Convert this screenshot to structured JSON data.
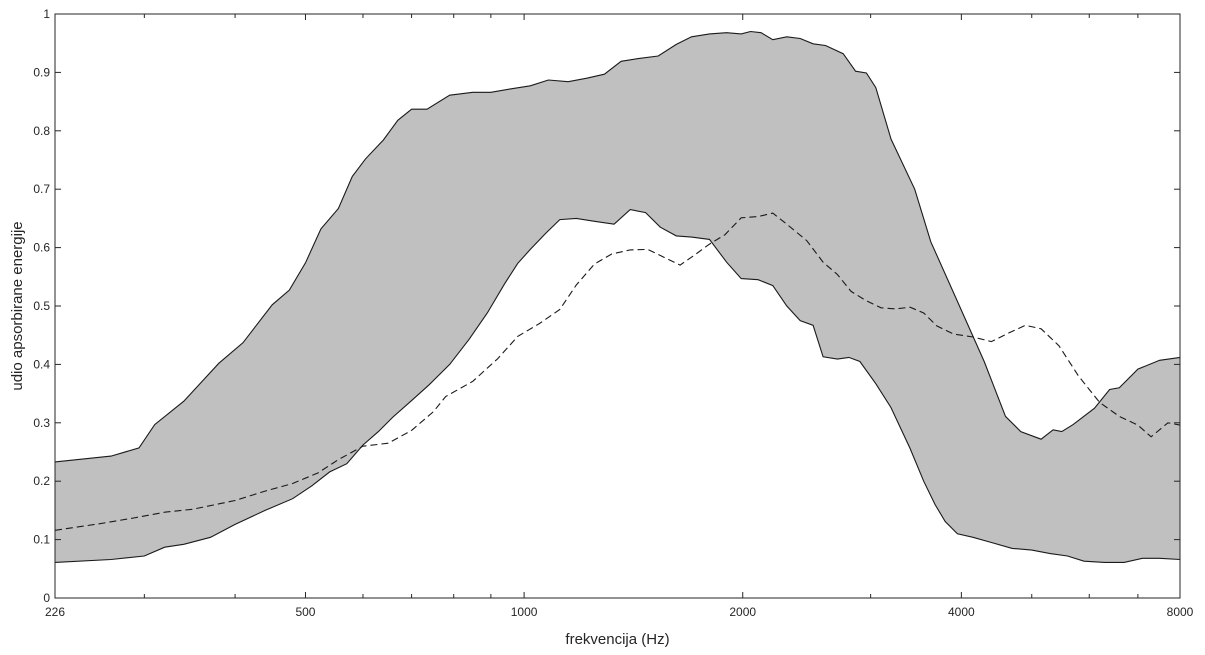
{
  "chart_data": {
    "type": "area",
    "title": "",
    "xlabel": "frekvencija (Hz)",
    "ylabel": "udio apsorbirane energije",
    "x_scale": "log",
    "xlim": [
      226,
      8000
    ],
    "ylim": [
      0,
      1
    ],
    "x_ticks": [
      {
        "value": 226,
        "label": "226"
      },
      {
        "value": 500,
        "label": "500"
      },
      {
        "value": 1000,
        "label": "1000"
      },
      {
        "value": 2000,
        "label": "2000"
      },
      {
        "value": 4000,
        "label": "4000"
      },
      {
        "value": 8000,
        "label": "8000"
      }
    ],
    "x_minor_ticks": [
      300,
      400,
      600,
      700,
      800,
      900,
      3000,
      5000,
      6000,
      7000
    ],
    "y_ticks": [
      {
        "value": 0,
        "label": "0"
      },
      {
        "value": 0.1,
        "label": "0.1"
      },
      {
        "value": 0.2,
        "label": "0.2"
      },
      {
        "value": 0.3,
        "label": "0.3"
      },
      {
        "value": 0.4,
        "label": "0.4"
      },
      {
        "value": 0.5,
        "label": "0.5"
      },
      {
        "value": 0.6,
        "label": "0.6"
      },
      {
        "value": 0.7,
        "label": "0.7"
      },
      {
        "value": 0.8,
        "label": "0.8"
      },
      {
        "value": 0.9,
        "label": "0.9"
      },
      {
        "value": 1,
        "label": "1"
      }
    ],
    "grid": false,
    "legend": "none",
    "colors": {
      "band_fill": "#c0c0c0",
      "band_edge": "#1a1a1a",
      "dashed_line": "#1a1a1a",
      "axis": "#262626"
    },
    "series": [
      {
        "role": "band-upper",
        "style": "solid",
        "points": [
          [
            226,
            0.233
          ],
          [
            270,
            0.243
          ],
          [
            295,
            0.257
          ],
          [
            310,
            0.297
          ],
          [
            340,
            0.337
          ],
          [
            380,
            0.402
          ],
          [
            410,
            0.437
          ],
          [
            450,
            0.502
          ],
          [
            475,
            0.527
          ],
          [
            500,
            0.574
          ],
          [
            525,
            0.632
          ],
          [
            555,
            0.667
          ],
          [
            580,
            0.722
          ],
          [
            605,
            0.752
          ],
          [
            640,
            0.784
          ],
          [
            670,
            0.818
          ],
          [
            700,
            0.837
          ],
          [
            735,
            0.837
          ],
          [
            790,
            0.861
          ],
          [
            850,
            0.866
          ],
          [
            900,
            0.866
          ],
          [
            960,
            0.872
          ],
          [
            1020,
            0.877
          ],
          [
            1080,
            0.887
          ],
          [
            1150,
            0.884
          ],
          [
            1220,
            0.89
          ],
          [
            1290,
            0.897
          ],
          [
            1360,
            0.919
          ],
          [
            1440,
            0.924
          ],
          [
            1530,
            0.928
          ],
          [
            1620,
            0.948
          ],
          [
            1700,
            0.961
          ],
          [
            1800,
            0.966
          ],
          [
            1900,
            0.968
          ],
          [
            1990,
            0.966
          ],
          [
            2050,
            0.97
          ],
          [
            2120,
            0.968
          ],
          [
            2200,
            0.956
          ],
          [
            2300,
            0.961
          ],
          [
            2400,
            0.958
          ],
          [
            2500,
            0.949
          ],
          [
            2600,
            0.946
          ],
          [
            2750,
            0.932
          ],
          [
            2860,
            0.902
          ],
          [
            2960,
            0.899
          ],
          [
            3050,
            0.874
          ],
          [
            3200,
            0.786
          ],
          [
            3450,
            0.7
          ],
          [
            3630,
            0.61
          ],
          [
            3960,
            0.505
          ],
          [
            4300,
            0.405
          ],
          [
            4600,
            0.311
          ],
          [
            4830,
            0.285
          ],
          [
            5150,
            0.272
          ],
          [
            5350,
            0.288
          ],
          [
            5500,
            0.285
          ],
          [
            5700,
            0.297
          ],
          [
            6100,
            0.325
          ],
          [
            6400,
            0.357
          ],
          [
            6600,
            0.36
          ],
          [
            7000,
            0.392
          ],
          [
            7500,
            0.407
          ],
          [
            8000,
            0.412
          ]
        ]
      },
      {
        "role": "band-lower",
        "style": "solid",
        "points": [
          [
            226,
            0.061
          ],
          [
            270,
            0.066
          ],
          [
            300,
            0.072
          ],
          [
            320,
            0.087
          ],
          [
            340,
            0.092
          ],
          [
            370,
            0.104
          ],
          [
            400,
            0.126
          ],
          [
            440,
            0.15
          ],
          [
            480,
            0.17
          ],
          [
            510,
            0.192
          ],
          [
            540,
            0.216
          ],
          [
            570,
            0.23
          ],
          [
            600,
            0.262
          ],
          [
            630,
            0.285
          ],
          [
            660,
            0.31
          ],
          [
            700,
            0.338
          ],
          [
            740,
            0.365
          ],
          [
            790,
            0.4
          ],
          [
            840,
            0.443
          ],
          [
            890,
            0.488
          ],
          [
            940,
            0.538
          ],
          [
            980,
            0.573
          ],
          [
            1020,
            0.597
          ],
          [
            1070,
            0.624
          ],
          [
            1120,
            0.648
          ],
          [
            1180,
            0.65
          ],
          [
            1250,
            0.645
          ],
          [
            1330,
            0.64
          ],
          [
            1400,
            0.665
          ],
          [
            1470,
            0.66
          ],
          [
            1540,
            0.635
          ],
          [
            1620,
            0.62
          ],
          [
            1700,
            0.618
          ],
          [
            1800,
            0.614
          ],
          [
            1900,
            0.575
          ],
          [
            1990,
            0.547
          ],
          [
            2100,
            0.545
          ],
          [
            2200,
            0.535
          ],
          [
            2300,
            0.5
          ],
          [
            2400,
            0.475
          ],
          [
            2500,
            0.467
          ],
          [
            2580,
            0.413
          ],
          [
            2700,
            0.409
          ],
          [
            2800,
            0.412
          ],
          [
            2900,
            0.405
          ],
          [
            3050,
            0.367
          ],
          [
            3200,
            0.326
          ],
          [
            3400,
            0.256
          ],
          [
            3550,
            0.2
          ],
          [
            3680,
            0.16
          ],
          [
            3800,
            0.131
          ],
          [
            3950,
            0.11
          ],
          [
            4150,
            0.104
          ],
          [
            4400,
            0.095
          ],
          [
            4700,
            0.085
          ],
          [
            5000,
            0.082
          ],
          [
            5300,
            0.076
          ],
          [
            5600,
            0.072
          ],
          [
            5900,
            0.063
          ],
          [
            6300,
            0.061
          ],
          [
            6700,
            0.061
          ],
          [
            7100,
            0.068
          ],
          [
            7500,
            0.068
          ],
          [
            8000,
            0.066
          ]
        ]
      },
      {
        "role": "mean",
        "style": "dashed",
        "points": [
          [
            226,
            0.116
          ],
          [
            260,
            0.127
          ],
          [
            290,
            0.137
          ],
          [
            320,
            0.147
          ],
          [
            350,
            0.152
          ],
          [
            400,
            0.167
          ],
          [
            440,
            0.183
          ],
          [
            480,
            0.196
          ],
          [
            520,
            0.214
          ],
          [
            555,
            0.237
          ],
          [
            600,
            0.26
          ],
          [
            650,
            0.265
          ],
          [
            700,
            0.287
          ],
          [
            750,
            0.319
          ],
          [
            780,
            0.345
          ],
          [
            850,
            0.371
          ],
          [
            920,
            0.41
          ],
          [
            980,
            0.448
          ],
          [
            1050,
            0.47
          ],
          [
            1120,
            0.494
          ],
          [
            1180,
            0.536
          ],
          [
            1250,
            0.572
          ],
          [
            1320,
            0.589
          ],
          [
            1400,
            0.596
          ],
          [
            1480,
            0.597
          ],
          [
            1560,
            0.583
          ],
          [
            1640,
            0.57
          ],
          [
            1720,
            0.588
          ],
          [
            1800,
            0.606
          ],
          [
            1890,
            0.622
          ],
          [
            1990,
            0.651
          ],
          [
            2100,
            0.653
          ],
          [
            2200,
            0.659
          ],
          [
            2300,
            0.64
          ],
          [
            2450,
            0.612
          ],
          [
            2580,
            0.575
          ],
          [
            2700,
            0.554
          ],
          [
            2820,
            0.525
          ],
          [
            2950,
            0.51
          ],
          [
            3100,
            0.497
          ],
          [
            3250,
            0.495
          ],
          [
            3400,
            0.498
          ],
          [
            3550,
            0.488
          ],
          [
            3700,
            0.466
          ],
          [
            3900,
            0.452
          ],
          [
            4150,
            0.447
          ],
          [
            4400,
            0.439
          ],
          [
            4650,
            0.454
          ],
          [
            4900,
            0.467
          ],
          [
            5150,
            0.461
          ],
          [
            5450,
            0.432
          ],
          [
            5800,
            0.38
          ],
          [
            6200,
            0.335
          ],
          [
            6600,
            0.311
          ],
          [
            7000,
            0.296
          ],
          [
            7300,
            0.276
          ],
          [
            7700,
            0.3
          ],
          [
            8000,
            0.296
          ]
        ]
      }
    ]
  }
}
